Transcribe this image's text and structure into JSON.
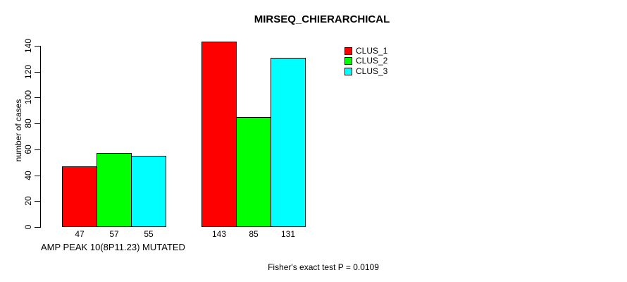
{
  "chart_data": {
    "type": "bar",
    "title": "MIRSEQ_CHIERARCHICAL",
    "ylabel": "number of cases",
    "xlabel": "AMP PEAK 10(8P11.23) MUTATED",
    "annotation": "Fisher's exact test P = 0.0109",
    "ylim": [
      0,
      140
    ],
    "yticks": [
      0,
      20,
      40,
      60,
      80,
      100,
      120,
      140
    ],
    "grid": false,
    "legend_position": "top-right",
    "group_count": 2,
    "series": [
      {
        "name": "CLUS_1",
        "color": "#ff0000",
        "values": [
          47,
          143
        ]
      },
      {
        "name": "CLUS_2",
        "color": "#00ff00",
        "values": [
          57,
          85
        ]
      },
      {
        "name": "CLUS_3",
        "color": "#00ffff",
        "values": [
          55,
          131
        ]
      }
    ],
    "bar_value_labels": [
      [
        "47",
        "57",
        "55"
      ],
      [
        "143",
        "85",
        "131"
      ]
    ],
    "colors": {
      "axis": "#000000",
      "background": "#ffffff",
      "text": "#000000"
    }
  }
}
